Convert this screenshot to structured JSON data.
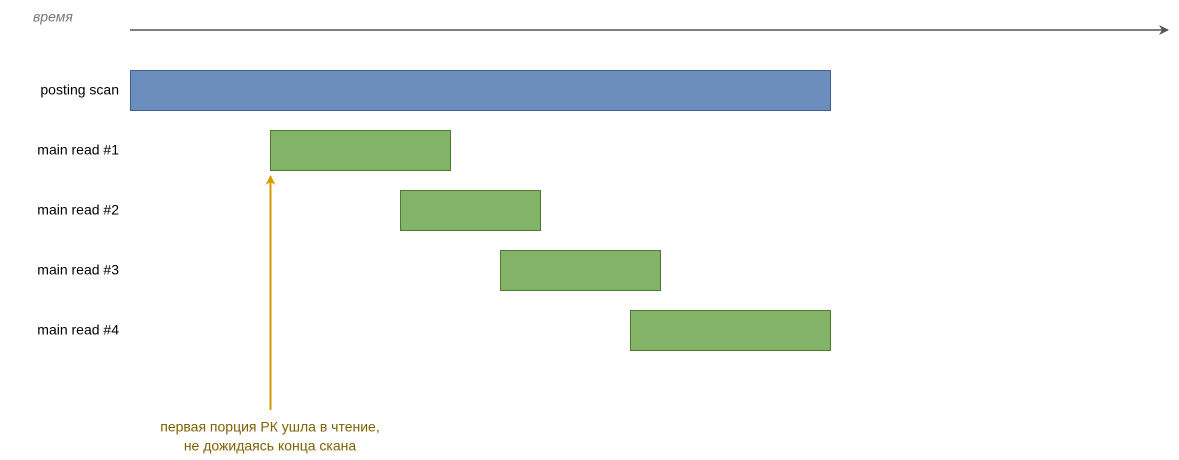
{
  "axis_label": "время",
  "rows": [
    {
      "label": "posting scan"
    },
    {
      "label": "main read #1"
    },
    {
      "label": "main read #2"
    },
    {
      "label": "main read #3"
    },
    {
      "label": "main read #4"
    }
  ],
  "annotation": {
    "lines": [
      "первая порция РК ушла в чтение,",
      "не дожидаясь конца скана"
    ]
  }
}
